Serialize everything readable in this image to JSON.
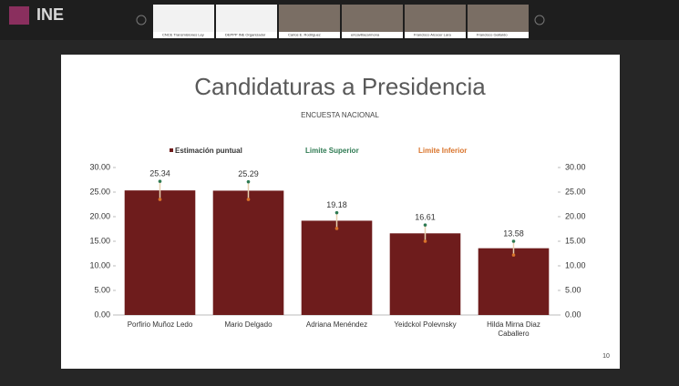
{
  "header": {
    "logo": "INE"
  },
  "participants": [
    "CNCE Transmisiones Ley",
    "DEPPP INE Organizador",
    "Carlos E. Rodriguez",
    "ericavillacarmona",
    "Francisco Alcocer Lara",
    "Francisco Gallardo"
  ],
  "slide_number": "10",
  "chart_data": {
    "type": "bar",
    "title": "Candidaturas a Presidencia",
    "subtitle": "ENCUESTA NACIONAL",
    "categories": [
      "Porfirio Muñoz Ledo",
      "Mario Delgado",
      "Adriana Menéndez",
      "Yeidckol Polevnsky",
      "Hilda Mirna Diaz Caballero"
    ],
    "series": [
      {
        "name": "Estimación puntual",
        "color": "#6e1c1c",
        "values": [
          25.34,
          25.29,
          19.18,
          16.61,
          13.58
        ]
      },
      {
        "name": "Limite Superior",
        "color": "#2e7a52",
        "values": [
          27.2,
          27.1,
          20.8,
          18.3,
          15.0
        ]
      },
      {
        "name": "Limite Inferior",
        "color": "#d9732a",
        "values": [
          23.5,
          23.5,
          17.6,
          15.0,
          12.2
        ]
      }
    ],
    "ylim": [
      0,
      30
    ],
    "yticks": [
      {
        "value": 0,
        "label": "0.00"
      },
      {
        "value": 5,
        "label": "5.00"
      },
      {
        "value": 10,
        "label": "10.00"
      },
      {
        "value": 15,
        "label": "15.00"
      },
      {
        "value": 20,
        "label": "20.00"
      },
      {
        "value": 25,
        "label": "25.00"
      },
      {
        "value": 30,
        "label": "30.00"
      }
    ],
    "y2lim": [
      0,
      30
    ],
    "y2ticks": [
      {
        "value": 0,
        "label": "0.00"
      },
      {
        "value": 5,
        "label": "5.00"
      },
      {
        "value": 10,
        "label": "10.00"
      },
      {
        "value": 15,
        "label": "15.00"
      },
      {
        "value": 20,
        "label": "20.00"
      },
      {
        "value": 25,
        "label": "25.00"
      },
      {
        "value": 30,
        "label": "30.00"
      }
    ]
  }
}
